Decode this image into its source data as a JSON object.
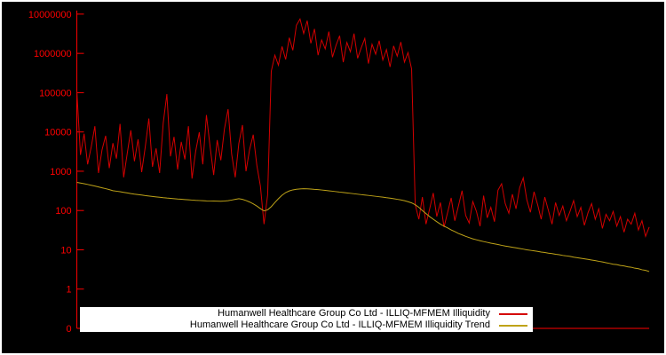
{
  "chart": {
    "background": "#000000",
    "axis_color": "#ff0000",
    "tick_labels": [
      "10000000",
      "1000000",
      "100000",
      "10000",
      "1000",
      "100",
      "10",
      "1",
      "0"
    ],
    "legend": [
      {
        "label": "Humanwell Healthcare Group Co Ltd - ILLIQ-MFMEM Illiquidity",
        "color": "#d40000"
      },
      {
        "label": "Humanwell Healthcare Group Co Ltd - ILLIQ-MFMEM Illiquidity Trend",
        "color": "#bfa318"
      }
    ]
  },
  "chart_data": {
    "type": "line",
    "yscale": "log",
    "ylim": [
      0.1,
      10000000
    ],
    "grid": false,
    "legend_position": "bottom-center",
    "series": [
      {
        "name": "Humanwell Healthcare Group Co Ltd - ILLIQ-MFMEM Illiquidity",
        "color": "#d40000",
        "values": [
          110000,
          2600,
          9000,
          1500,
          4200,
          14000,
          900,
          3500,
          8000,
          1200,
          5200,
          2100,
          16000,
          700,
          2900,
          11000,
          1800,
          6500,
          950,
          4100,
          22000,
          1300,
          3800,
          900,
          17000,
          92000,
          2400,
          7500,
          1100,
          5600,
          2000,
          14000,
          650,
          3200,
          9800,
          1500,
          27000,
          4300,
          800,
          6200,
          1900,
          12000,
          38000,
          2800,
          700,
          5100,
          15000,
          1000,
          3600,
          8500,
          1400,
          420,
          45,
          250,
          350000,
          900000,
          500000,
          1500000,
          700000,
          2500000,
          1200000,
          5200000,
          7500000,
          3200000,
          6800000,
          1800000,
          4200000,
          900000,
          2200000,
          1300000,
          3600000,
          800000,
          1600000,
          2800000,
          600000,
          1900000,
          1100000,
          3200000,
          750000,
          1400000,
          2400000,
          550000,
          1700000,
          950000,
          2100000,
          680000,
          1250000,
          450000,
          1550000,
          850000,
          1950000,
          600000,
          1050000,
          400000,
          140,
          60,
          220,
          45,
          110,
          280,
          70,
          160,
          38,
          90,
          210,
          55,
          130,
          320,
          75,
          48,
          170,
          95,
          40,
          240,
          65,
          120,
          52,
          330,
          480,
          150,
          85,
          260,
          110,
          380,
          680,
          190,
          90,
          300,
          140,
          60,
          220,
          100,
          45,
          160,
          75,
          130,
          55,
          95,
          180,
          70,
          120,
          42,
          88,
          150,
          60,
          110,
          35,
          80,
          55,
          95,
          40,
          70,
          28,
          60,
          45,
          85,
          32,
          55,
          22,
          38
        ]
      },
      {
        "name": "Humanwell Healthcare Group Co Ltd - ILLIQ-MFMEM Illiquidity Trend",
        "color": "#bfa318",
        "values": [
          520,
          500,
          480,
          460,
          440,
          420,
          400,
          380,
          360,
          340,
          320,
          310,
          300,
          290,
          280,
          270,
          262,
          255,
          248,
          240,
          234,
          228,
          222,
          217,
          212,
          208,
          204,
          200,
          196,
          193,
          190,
          187,
          184,
          182,
          180,
          178,
          176,
          175,
          174,
          173,
          172,
          174,
          178,
          184,
          192,
          200,
          192,
          180,
          165,
          148,
          130,
          112,
          98,
          104,
          125,
          160,
          200,
          245,
          285,
          315,
          335,
          348,
          355,
          358,
          356,
          352,
          346,
          340,
          333,
          326,
          318,
          310,
          302,
          295,
          288,
          281,
          274,
          267,
          260,
          254,
          248,
          242,
          236,
          230,
          224,
          218,
          212,
          206,
          200,
          193,
          186,
          178,
          168,
          156,
          140,
          120,
          100,
          84,
          70,
          60,
          52,
          45,
          40,
          36,
          32,
          29,
          26,
          24,
          22,
          20.5,
          19,
          18,
          17,
          16.2,
          15.5,
          14.8,
          14.2,
          13.6,
          13,
          12.5,
          12,
          11.6,
          11.2,
          10.8,
          10.4,
          10,
          9.7,
          9.4,
          9.1,
          8.8,
          8.5,
          8.2,
          8,
          7.7,
          7.5,
          7.2,
          7,
          6.8,
          6.5,
          6.3,
          6.1,
          5.9,
          5.7,
          5.5,
          5.3,
          5.1,
          4.9,
          4.7,
          4.5,
          4.3,
          4.2,
          4,
          3.9,
          3.7,
          3.6,
          3.4,
          3.3,
          3.1,
          3,
          2.8
        ]
      }
    ]
  }
}
